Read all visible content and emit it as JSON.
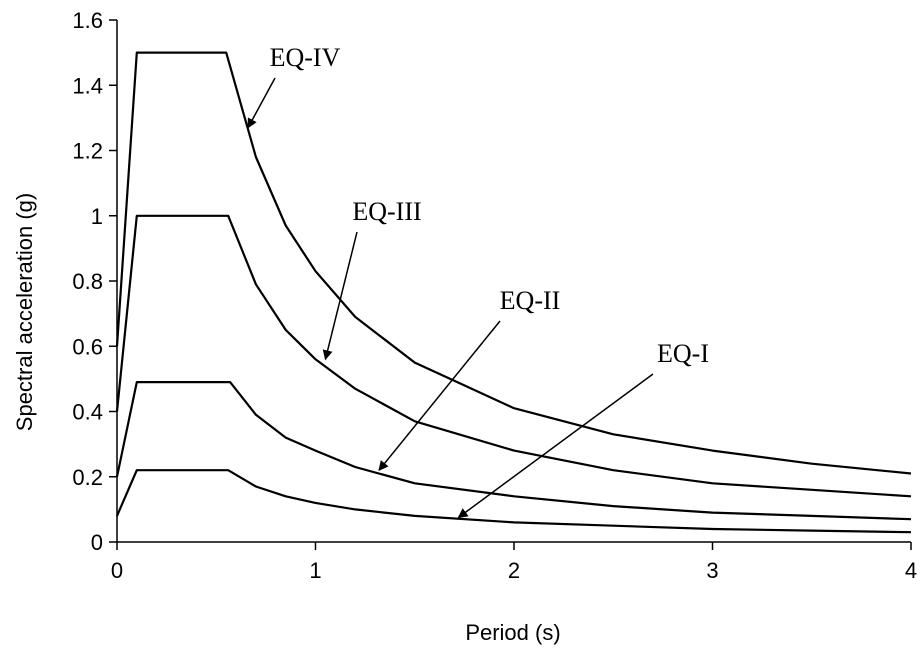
{
  "chart_data": {
    "type": "line",
    "title": "",
    "xlabel": "Period (s)",
    "ylabel": "Spectral acceleration (g)",
    "xlim": [
      0,
      4
    ],
    "ylim": [
      0,
      1.6
    ],
    "xticks": [
      "0",
      "1",
      "2",
      "3",
      "4"
    ],
    "yticks": [
      "0",
      "0.2",
      "0.4",
      "0.6",
      "0.8",
      "1",
      "1.2",
      "1.4",
      "1.6"
    ],
    "grid": false,
    "legend": "none",
    "series": [
      {
        "name": "EQ-IV",
        "x": [
          0,
          0.1,
          0.55,
          0.7,
          0.85,
          1.0,
          1.2,
          1.5,
          2.0,
          2.5,
          3.0,
          3.5,
          4.0
        ],
        "values": [
          0.6,
          1.5,
          1.5,
          1.18,
          0.97,
          0.83,
          0.69,
          0.55,
          0.41,
          0.33,
          0.28,
          0.24,
          0.21
        ]
      },
      {
        "name": "EQ-III",
        "x": [
          0,
          0.1,
          0.56,
          0.7,
          0.85,
          1.0,
          1.2,
          1.5,
          2.0,
          2.5,
          3.0,
          3.5,
          4.0
        ],
        "values": [
          0.4,
          1.0,
          1.0,
          0.79,
          0.65,
          0.56,
          0.47,
          0.37,
          0.28,
          0.22,
          0.18,
          0.16,
          0.14
        ]
      },
      {
        "name": "EQ-II",
        "x": [
          0,
          0.1,
          0.57,
          0.7,
          0.85,
          1.0,
          1.2,
          1.5,
          2.0,
          2.5,
          3.0,
          3.5,
          4.0
        ],
        "values": [
          0.2,
          0.49,
          0.49,
          0.39,
          0.32,
          0.28,
          0.23,
          0.18,
          0.14,
          0.11,
          0.09,
          0.08,
          0.07
        ]
      },
      {
        "name": "EQ-I",
        "x": [
          0,
          0.1,
          0.56,
          0.7,
          0.85,
          1.0,
          1.2,
          1.5,
          2.0,
          2.5,
          3.0,
          3.5,
          4.0
        ],
        "values": [
          0.08,
          0.22,
          0.22,
          0.17,
          0.14,
          0.12,
          0.1,
          0.08,
          0.06,
          0.05,
          0.04,
          0.035,
          0.03
        ]
      }
    ],
    "annotations": [
      {
        "text": "EQ-IV",
        "series": "EQ-IV",
        "arrow_to": [
          0.66,
          1.27
        ]
      },
      {
        "text": "EQ-III",
        "series": "EQ-III",
        "arrow_to": [
          1.05,
          0.56
        ]
      },
      {
        "text": "EQ-II",
        "series": "EQ-II",
        "arrow_to": [
          1.32,
          0.22
        ]
      },
      {
        "text": "EQ-I",
        "series": "EQ-I",
        "arrow_to": [
          1.72,
          0.075
        ]
      }
    ],
    "line_color": "#000000"
  }
}
